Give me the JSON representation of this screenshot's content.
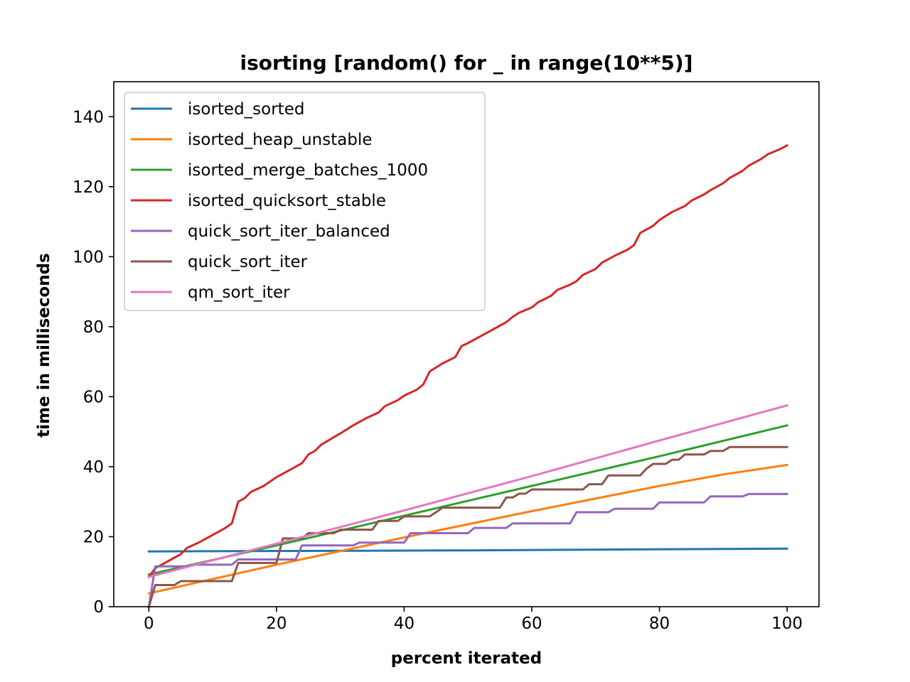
{
  "chart_data": {
    "type": "line",
    "title": "isorting [random() for _ in range(10**5)]",
    "xlabel": "percent iterated",
    "ylabel": "time in milliseconds",
    "xlim": [
      -5.5,
      105
    ],
    "ylim": [
      0,
      150
    ],
    "xticks": [
      0,
      20,
      40,
      60,
      80,
      100
    ],
    "yticks": [
      0,
      20,
      40,
      60,
      80,
      100,
      120,
      140
    ],
    "grid": false,
    "legend_position": "upper-left",
    "series": [
      {
        "name": "isorted_sorted",
        "color": "#1f77b4",
        "points": [
          [
            0,
            15.8
          ],
          [
            50,
            16.1
          ],
          [
            100,
            16.6
          ]
        ]
      },
      {
        "name": "isorted_heap_unstable",
        "color": "#ff7f0e",
        "points": [
          [
            0,
            3.8
          ],
          [
            20,
            12
          ],
          [
            40,
            19.8
          ],
          [
            60,
            27.3
          ],
          [
            80,
            34.5
          ],
          [
            90,
            37.8
          ],
          [
            100,
            40.5
          ]
        ]
      },
      {
        "name": "isorted_merge_batches_1000",
        "color": "#2ca02c",
        "points": [
          [
            0,
            9.2
          ],
          [
            20,
            17.5
          ],
          [
            40,
            26
          ],
          [
            60,
            34.5
          ],
          [
            80,
            43
          ],
          [
            100,
            51.8
          ]
        ]
      },
      {
        "name": "isorted_quicksort_stable",
        "color": "#d62728",
        "points": [
          [
            0,
            8.5
          ],
          [
            1,
            11
          ],
          [
            3,
            13
          ],
          [
            5,
            15
          ],
          [
            6,
            16.8
          ],
          [
            8,
            18.5
          ],
          [
            10,
            20.5
          ],
          [
            12,
            22.5
          ],
          [
            13,
            23.8
          ],
          [
            14,
            30
          ],
          [
            15,
            31
          ],
          [
            16,
            32.8
          ],
          [
            18,
            34.5
          ],
          [
            20,
            37
          ],
          [
            21,
            38
          ],
          [
            23,
            40
          ],
          [
            24,
            41
          ],
          [
            25,
            43.5
          ],
          [
            26,
            44.5
          ],
          [
            27,
            46.3
          ],
          [
            30,
            49.5
          ],
          [
            32,
            51.8
          ],
          [
            34,
            53.8
          ],
          [
            36,
            55.5
          ],
          [
            37,
            57.3
          ],
          [
            39,
            59
          ],
          [
            40,
            60.3
          ],
          [
            42,
            62
          ],
          [
            43,
            63.5
          ],
          [
            44,
            67.2
          ],
          [
            46,
            69.5
          ],
          [
            48,
            71.3
          ],
          [
            49,
            74.5
          ],
          [
            50,
            75.3
          ],
          [
            52,
            77.3
          ],
          [
            54,
            79.3
          ],
          [
            56,
            81.3
          ],
          [
            57,
            82.8
          ],
          [
            58,
            84
          ],
          [
            60,
            85.5
          ],
          [
            61,
            87
          ],
          [
            63,
            88.8
          ],
          [
            64,
            90.5
          ],
          [
            66,
            92
          ],
          [
            67,
            93
          ],
          [
            68,
            94.8
          ],
          [
            70,
            96.5
          ],
          [
            71,
            98.3
          ],
          [
            73,
            100.3
          ],
          [
            75,
            102
          ],
          [
            76,
            103.3
          ],
          [
            77,
            106.8
          ],
          [
            79,
            108.8
          ],
          [
            80,
            110.5
          ],
          [
            82,
            112.8
          ],
          [
            84,
            114.5
          ],
          [
            85,
            116
          ],
          [
            87,
            117.8
          ],
          [
            88,
            119
          ],
          [
            90,
            121
          ],
          [
            91,
            122.5
          ],
          [
            92,
            123.5
          ],
          [
            93,
            124.5
          ],
          [
            94,
            126
          ],
          [
            96,
            128
          ],
          [
            97,
            129.3
          ],
          [
            99,
            130.8
          ],
          [
            100,
            131.8
          ]
        ]
      },
      {
        "name": "quick_sort_iter_balanced",
        "color": "#9467bd",
        "points": [
          [
            0,
            0
          ],
          [
            1,
            11.5
          ],
          [
            6,
            11.5
          ],
          [
            7,
            12
          ],
          [
            13,
            12
          ],
          [
            14,
            13.5
          ],
          [
            23,
            13.5
          ],
          [
            24,
            17.5
          ],
          [
            32,
            17.5
          ],
          [
            33,
            18.3
          ],
          [
            40,
            18.3
          ],
          [
            41,
            21
          ],
          [
            50,
            21
          ],
          [
            51,
            22.5
          ],
          [
            56,
            22.5
          ],
          [
            57,
            23.8
          ],
          [
            66,
            23.8
          ],
          [
            67,
            27
          ],
          [
            72,
            27
          ],
          [
            73,
            28
          ],
          [
            79,
            28
          ],
          [
            80,
            29.8
          ],
          [
            87,
            29.8
          ],
          [
            88,
            31.5
          ],
          [
            93,
            31.5
          ],
          [
            94,
            32.2
          ],
          [
            100,
            32.2
          ]
        ]
      },
      {
        "name": "quick_sort_iter",
        "color": "#8c564b",
        "points": [
          [
            0,
            0
          ],
          [
            1,
            6.2
          ],
          [
            4,
            6.2
          ],
          [
            5,
            7.3
          ],
          [
            13,
            7.3
          ],
          [
            14,
            12.5
          ],
          [
            20,
            12.5
          ],
          [
            21,
            19.5
          ],
          [
            24,
            19.5
          ],
          [
            25,
            21
          ],
          [
            29,
            21
          ],
          [
            30,
            22
          ],
          [
            35,
            22
          ],
          [
            36,
            24.5
          ],
          [
            39,
            24.5
          ],
          [
            40,
            25.8
          ],
          [
            44,
            25.8
          ],
          [
            45,
            27
          ],
          [
            46,
            28.3
          ],
          [
            55,
            28.3
          ],
          [
            56,
            31.2
          ],
          [
            57,
            31.2
          ],
          [
            58,
            32.3
          ],
          [
            59,
            32.3
          ],
          [
            60,
            33.5
          ],
          [
            68,
            33.5
          ],
          [
            69,
            35
          ],
          [
            71,
            35
          ],
          [
            72,
            37.5
          ],
          [
            77,
            37.5
          ],
          [
            78,
            39.5
          ],
          [
            79,
            40.8
          ],
          [
            81,
            40.8
          ],
          [
            82,
            42
          ],
          [
            83,
            42
          ],
          [
            84,
            43.5
          ],
          [
            87,
            43.5
          ],
          [
            88,
            44.5
          ],
          [
            90,
            44.5
          ],
          [
            91,
            45.6
          ],
          [
            100,
            45.6
          ]
        ]
      },
      {
        "name": "qm_sort_iter",
        "color": "#e377c2",
        "points": [
          [
            0,
            8.5
          ],
          [
            20,
            18
          ],
          [
            40,
            27.5
          ],
          [
            60,
            37.3
          ],
          [
            80,
            47.5
          ],
          [
            98,
            56.5
          ],
          [
            100,
            57.5
          ]
        ]
      }
    ]
  }
}
